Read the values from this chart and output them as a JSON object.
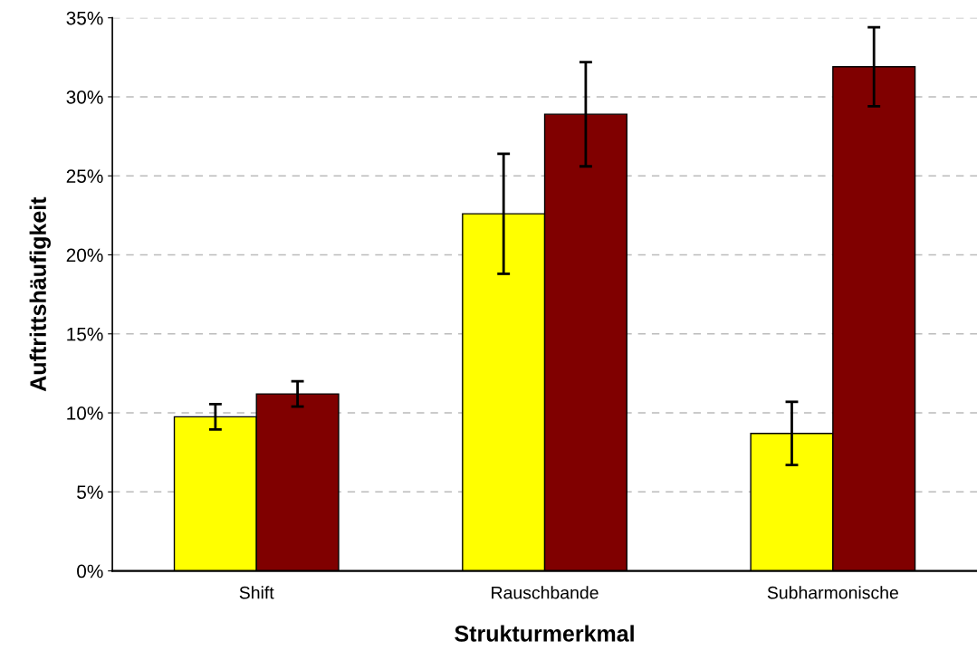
{
  "chart_data": {
    "type": "bar",
    "xlabel": "Strukturmerkmal",
    "ylabel": "Auftrittshäufigkeit",
    "categories": [
      "Shift",
      "Rauschbande",
      "Subharmonische"
    ],
    "series": [
      {
        "color": "#ffff00",
        "values": [
          9.75,
          22.6,
          8.7
        ],
        "errors": [
          0.8,
          3.8,
          2.0
        ]
      },
      {
        "color": "#800000",
        "values": [
          11.2,
          28.9,
          31.9
        ],
        "errors": [
          0.8,
          3.3,
          2.5
        ]
      }
    ],
    "ylim": [
      0,
      35
    ],
    "yticks": [
      {
        "value": 0,
        "label": "0%"
      },
      {
        "value": 5,
        "label": "5%"
      },
      {
        "value": 10,
        "label": "10%"
      },
      {
        "value": 15,
        "label": "15%"
      },
      {
        "value": 20,
        "label": "20%"
      },
      {
        "value": 25,
        "label": "25%"
      },
      {
        "value": 30,
        "label": "30%"
      },
      {
        "value": 35,
        "label": "35%"
      }
    ],
    "grid": "y"
  }
}
